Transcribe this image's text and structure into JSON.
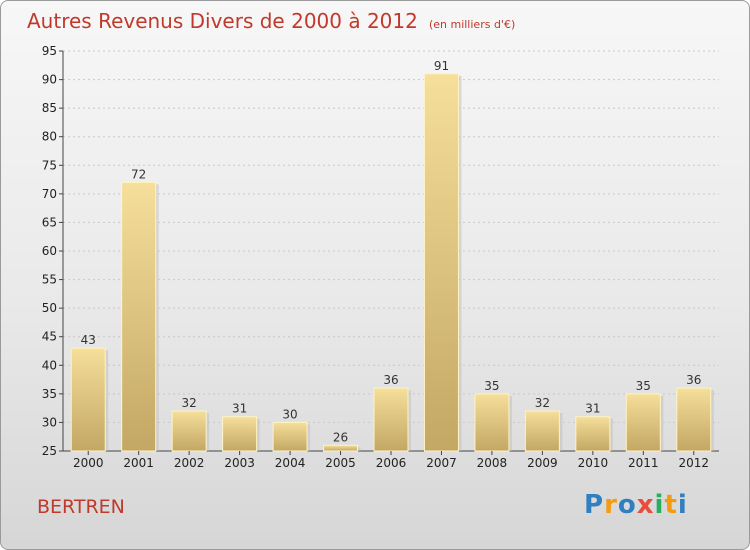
{
  "title": "Autres Revenus Divers de 2000 à 2012",
  "unit": "(en milliers d'€)",
  "place": "BERTREN",
  "logo": {
    "letters": [
      "P",
      "r",
      "o",
      "x",
      "i",
      "t",
      "i"
    ],
    "colors": [
      "#2f7fc1",
      "#f39c12",
      "#2f7fc1",
      "#e74c3c",
      "#27ae60",
      "#f39c12",
      "#2f7fc1"
    ]
  },
  "chart_data": {
    "type": "bar",
    "categories": [
      "2000",
      "2001",
      "2002",
      "2003",
      "2004",
      "2005",
      "2006",
      "2007",
      "2008",
      "2009",
      "2010",
      "2011",
      "2012"
    ],
    "values": [
      43,
      72,
      32,
      31,
      30,
      26,
      36,
      91,
      35,
      32,
      31,
      35,
      36
    ],
    "ylim": [
      25,
      95
    ],
    "yticks": [
      25,
      30,
      35,
      40,
      45,
      50,
      55,
      60,
      65,
      70,
      75,
      80,
      85,
      90,
      95
    ],
    "grid": true,
    "bar_color_light": "#f5df9a",
    "bar_color_dark": "#c3a764"
  }
}
